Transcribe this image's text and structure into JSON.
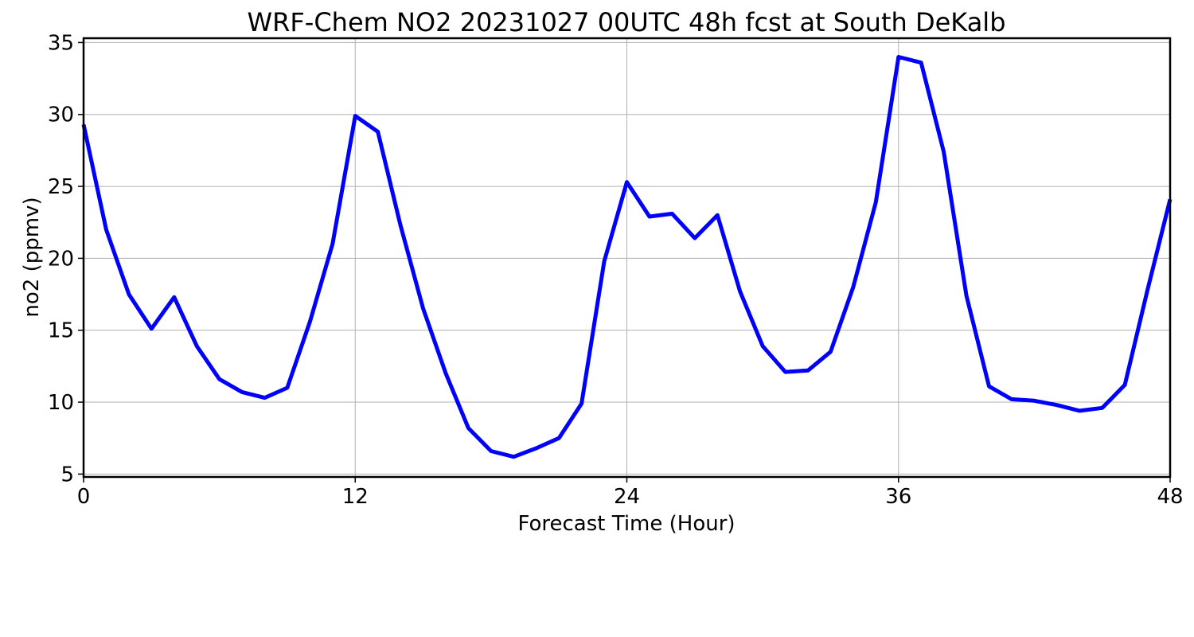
{
  "chart_data": {
    "type": "line",
    "title": "WRF-Chem NO2  20231027 00UTC 48h fcst at South DeKalb",
    "xlabel": "Forecast Time (Hour)",
    "ylabel": "no2  (ppmv)",
    "xlim": [
      0,
      48
    ],
    "ylim": [
      4.8,
      35.3
    ],
    "x_ticks": [
      0,
      12,
      24,
      36,
      48
    ],
    "y_ticks": [
      5,
      10,
      15,
      20,
      25,
      30,
      35
    ],
    "grid": true,
    "line_color": "#0000ff",
    "x": [
      0,
      1,
      2,
      3,
      4,
      5,
      6,
      7,
      8,
      9,
      10,
      11,
      12,
      13,
      14,
      15,
      16,
      17,
      18,
      19,
      20,
      21,
      22,
      23,
      24,
      25,
      26,
      27,
      28,
      29,
      30,
      31,
      32,
      33,
      34,
      35,
      36,
      37,
      38,
      39,
      40,
      41,
      42,
      43,
      44,
      45,
      46,
      47,
      48
    ],
    "values": [
      29.3,
      22.0,
      17.5,
      15.1,
      17.3,
      13.9,
      11.6,
      10.7,
      10.3,
      11.0,
      15.6,
      21.0,
      29.9,
      28.8,
      22.3,
      16.5,
      12.0,
      8.2,
      6.6,
      6.2,
      6.8,
      7.5,
      9.9,
      19.8,
      25.3,
      22.9,
      23.1,
      21.4,
      23.0,
      17.7,
      13.9,
      12.1,
      12.2,
      13.5,
      18.0,
      23.9,
      34.0,
      33.6,
      27.4,
      17.4,
      11.1,
      10.2,
      10.1,
      9.8,
      9.4,
      9.6,
      11.2,
      17.8,
      24.1
    ]
  }
}
